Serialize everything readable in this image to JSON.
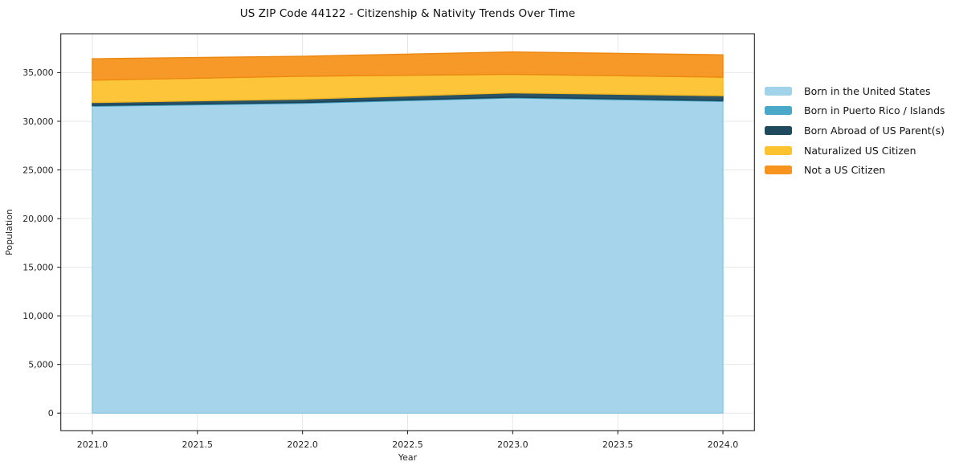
{
  "chart_data": {
    "type": "area",
    "stacked": true,
    "title": "US ZIP Code 44122 - Citizenship & Nativity Trends Over Time",
    "xlabel": "Year",
    "ylabel": "Population",
    "x": [
      2021,
      2022,
      2023,
      2024
    ],
    "series": [
      {
        "name": "Born in the United States",
        "color": "#a1d3ea",
        "edge": "#8cc8e2",
        "values": [
          31550,
          31850,
          32400,
          32050
        ]
      },
      {
        "name": "Born in Puerto Rico / Islands",
        "color": "#4aa8c8",
        "edge": "#3f9cbd",
        "values": [
          80,
          80,
          80,
          80
        ]
      },
      {
        "name": "Born Abroad of US Parent(s)",
        "color": "#1f4a5e",
        "edge": "#1b4255",
        "values": [
          300,
          350,
          450,
          500
        ]
      },
      {
        "name": "Naturalized US Citizen",
        "color": "#fdc32f",
        "edge": "#f2b722",
        "values": [
          2300,
          2350,
          1900,
          1900
        ]
      },
      {
        "name": "Not a US Citizen",
        "color": "#f7941e",
        "edge": "#ec8812",
        "values": [
          2200,
          2050,
          2300,
          2300
        ]
      }
    ],
    "xlim": [
      2020.85,
      2024.15
    ],
    "ylim": [
      -1800,
      39000
    ],
    "xticks": [
      2021.0,
      2021.5,
      2022.0,
      2022.5,
      2023.0,
      2023.5,
      2024.0
    ],
    "xticklabels": [
      "2021.0",
      "2021.5",
      "2022.0",
      "2022.5",
      "2023.0",
      "2023.5",
      "2024.0"
    ],
    "yticks": [
      0,
      5000,
      10000,
      15000,
      20000,
      25000,
      30000,
      35000
    ],
    "yticklabels": [
      "0",
      "5,000",
      "10,000",
      "15,000",
      "20,000",
      "25,000",
      "30,000",
      "35,000"
    ],
    "grid": true,
    "grid_color": "#e7e7ea",
    "spine_color": "#262626",
    "legend_position": "right"
  }
}
